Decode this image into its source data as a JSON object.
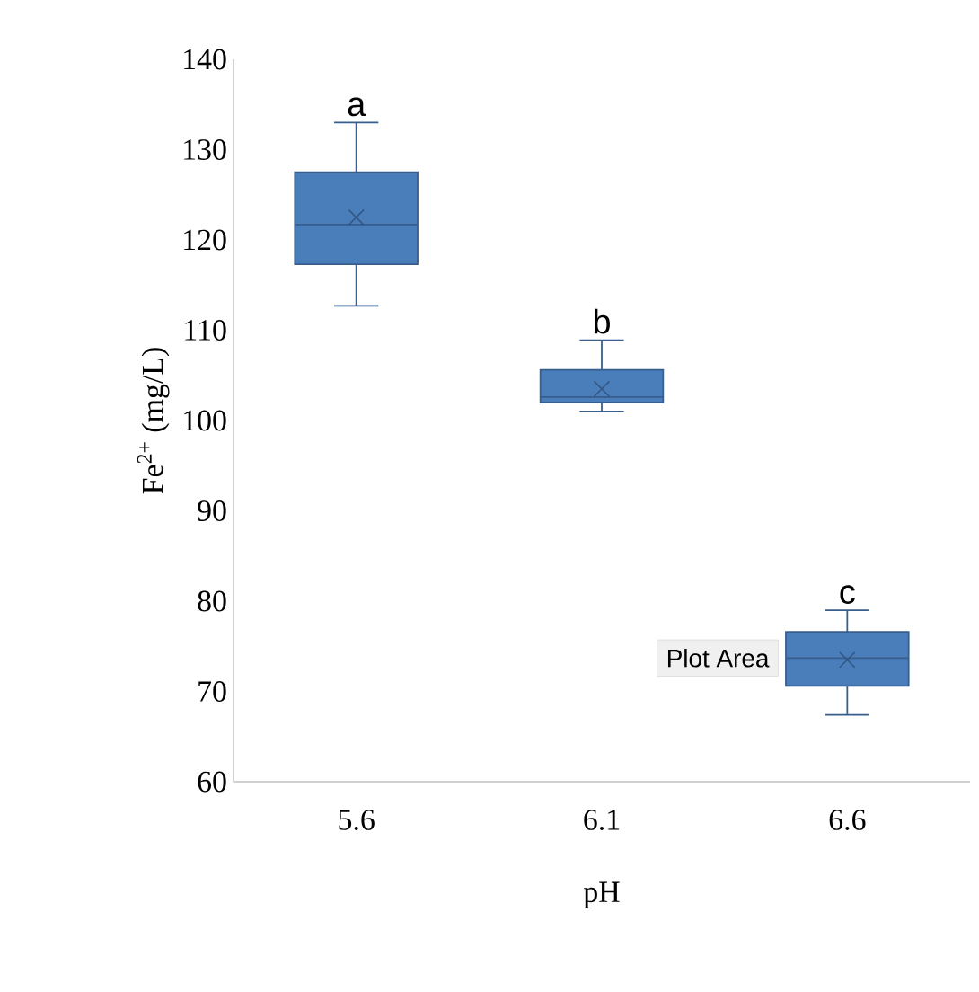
{
  "chart_data": {
    "type": "box",
    "xlabel": "pH",
    "ylabel": "Fe$^{2+}$ (mg/L)",
    "categories": [
      "5.6",
      "6.1",
      "6.6"
    ],
    "boxes": [
      {
        "low": 112.7,
        "q1": 117.3,
        "median": 121.7,
        "q3": 127.5,
        "high": 133,
        "mean": 122.5
      },
      {
        "low": 101,
        "q1": 102,
        "median": 102.6,
        "q3": 105.6,
        "high": 108.9,
        "mean": 103.5
      },
      {
        "low": 67.4,
        "q1": 70.6,
        "median": 73.7,
        "q3": 76.6,
        "high": 79,
        "mean": 73.5
      }
    ],
    "color": "#4a7ebb",
    "ylim": [
      60,
      140
    ],
    "yticks": [
      60,
      70,
      80,
      90,
      100,
      110,
      120,
      130,
      140
    ],
    "grid": false,
    "annotations": [
      "a",
      "b",
      "c",
      "Plot Area"
    ]
  }
}
